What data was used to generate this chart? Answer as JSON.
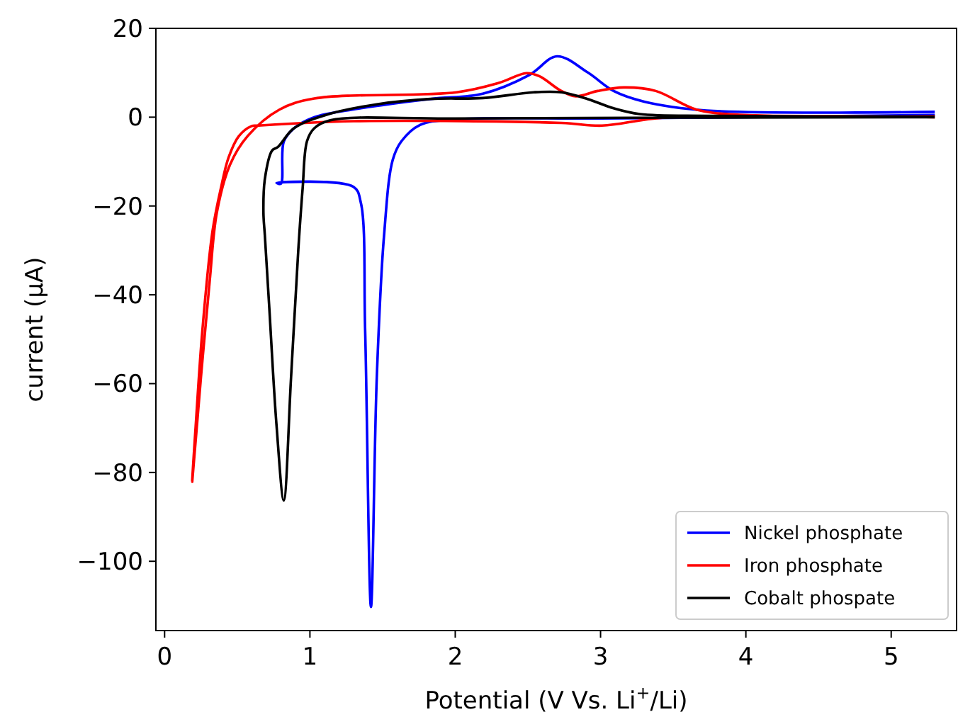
{
  "chart_data": {
    "type": "line",
    "xlabel": "Potential (V Vs. Li$^{+}$/Li)",
    "ylabel": "current (μA)",
    "xlim": [
      -0.06,
      5.45
    ],
    "ylim": [
      -115.6,
      20
    ],
    "xticks": [
      0,
      1,
      2,
      3,
      4,
      5
    ],
    "yticks": [
      {
        "value": -100,
        "label": "−100"
      },
      {
        "value": -80,
        "label": "−80"
      },
      {
        "value": -60,
        "label": "−60"
      },
      {
        "value": -40,
        "label": "−40"
      },
      {
        "value": -20,
        "label": "−20"
      },
      0,
      20
    ],
    "grid": false,
    "legend": "bottom right",
    "marker": "none",
    "line_style": "solid",
    "series": [
      {
        "name": "Nickel phosphate",
        "color": "#0000ff",
        "x": [
          5.3,
          4.0,
          3.0,
          2.0,
          1.76,
          1.63,
          1.57,
          1.51,
          1.46,
          1.42,
          1.38,
          1.35,
          1.3,
          0.77,
          0.8,
          0.82,
          0.89,
          1.03,
          1.29,
          1.83,
          2.19,
          2.51,
          2.7,
          2.91,
          3.09,
          3.3,
          3.73,
          5.3
        ],
        "values": [
          0.5,
          0,
          -0.3,
          -0.5,
          -1.7,
          -5.4,
          -9.6,
          -26.7,
          -58.7,
          -110.3,
          -48,
          -19.2,
          -15.7,
          -14.8,
          -15,
          -5.5,
          -2.5,
          0,
          1.7,
          4.1,
          5.3,
          9.5,
          13.7,
          10.1,
          5.9,
          3.5,
          1.5,
          1.2
        ]
      },
      {
        "name": "Iron phosphate",
        "color": "#ff0000",
        "x": [
          5.3,
          3.44,
          3.01,
          2.73,
          1.3,
          0.64,
          0.6,
          0.51,
          0.44,
          0.39,
          0.33,
          0.26,
          0.215,
          0.19,
          0.25,
          0.31,
          0.36,
          0.45,
          0.57,
          0.79,
          1.03,
          2.01,
          2.3,
          2.49,
          2.58,
          2.73,
          2.83,
          2.98,
          3.16,
          3.38,
          3.66,
          3.99,
          5.3
        ],
        "values": [
          0,
          -0.1,
          -1.9,
          -1.3,
          -0.9,
          -1.9,
          -2,
          -4.3,
          -9.1,
          -15.6,
          -25.6,
          -48,
          -69,
          -82.1,
          -58.6,
          -37,
          -21.4,
          -10.7,
          -4.3,
          1.7,
          4.2,
          5.6,
          7.7,
          9.9,
          9.2,
          5.9,
          4.7,
          5.9,
          6.7,
          5.9,
          1.7,
          0.5,
          0.2
        ]
      },
      {
        "name": "Cobalt phospate",
        "color": "#000000",
        "x": [
          5.3,
          2.0,
          1.14,
          1.03,
          0.98,
          0.95,
          0.92,
          0.87,
          0.82,
          0.77,
          0.72,
          0.69,
          0.68,
          0.69,
          0.74,
          0.78,
          0.89,
          1.11,
          1.46,
          1.83,
          2.19,
          2.54,
          2.73,
          2.91,
          3.09,
          3.27,
          3.77,
          5.3
        ],
        "values": [
          0,
          -0.3,
          -0.7,
          -2.5,
          -5.4,
          -16,
          -29.9,
          -58.7,
          -86.3,
          -69.3,
          -42.7,
          -26.7,
          -21.4,
          -13.9,
          -7.5,
          -6.7,
          -2.5,
          0.5,
          2.9,
          4.1,
          4.3,
          5.6,
          5.6,
          4.1,
          2,
          0.7,
          0.3,
          0.1
        ]
      }
    ]
  }
}
